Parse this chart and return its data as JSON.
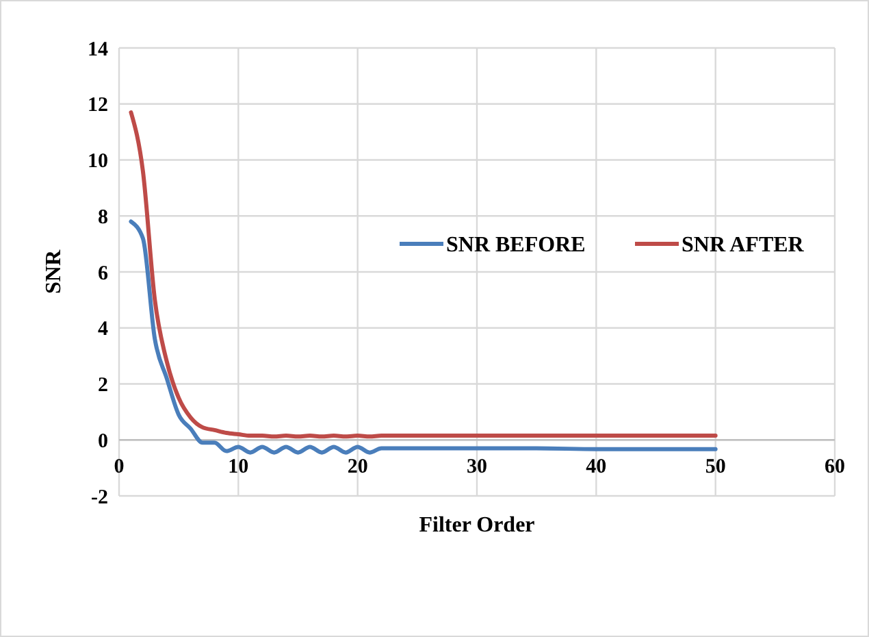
{
  "chart_data": {
    "type": "line",
    "xlabel": "Filter Order",
    "ylabel": "SNR",
    "x": [
      1,
      2,
      3,
      4,
      5,
      6,
      7,
      8,
      9,
      10,
      11,
      12,
      13,
      14,
      15,
      16,
      17,
      18,
      19,
      20,
      21,
      22,
      25,
      30,
      35,
      40,
      45,
      50
    ],
    "series": [
      {
        "name": "SNR BEFORE",
        "color": "#4a7ebb",
        "values": [
          7.8,
          7.2,
          3.6,
          2.2,
          0.9,
          0.4,
          -0.1,
          -0.1,
          -0.4,
          -0.25,
          -0.45,
          -0.25,
          -0.45,
          -0.25,
          -0.45,
          -0.25,
          -0.45,
          -0.25,
          -0.45,
          -0.25,
          -0.45,
          -0.3,
          -0.3,
          -0.3,
          -0.3,
          -0.33,
          -0.33,
          -0.33
        ]
      },
      {
        "name": "SNR AFTER",
        "color": "#be4b48",
        "values": [
          11.7,
          9.6,
          5.0,
          2.8,
          1.5,
          0.8,
          0.45,
          0.35,
          0.25,
          0.2,
          0.15,
          0.15,
          0.12,
          0.15,
          0.12,
          0.15,
          0.12,
          0.15,
          0.12,
          0.15,
          0.12,
          0.15,
          0.15,
          0.15,
          0.15,
          0.15,
          0.15,
          0.15
        ]
      }
    ],
    "xlim": [
      0,
      60
    ],
    "xticks": [
      0,
      10,
      20,
      30,
      40,
      50,
      60
    ],
    "ylim": [
      -2,
      14
    ],
    "yticks": [
      -2,
      0,
      2,
      4,
      6,
      8,
      10,
      12,
      14
    ],
    "grid": true,
    "legend": "right",
    "marker": "none",
    "line_style": "solid"
  }
}
